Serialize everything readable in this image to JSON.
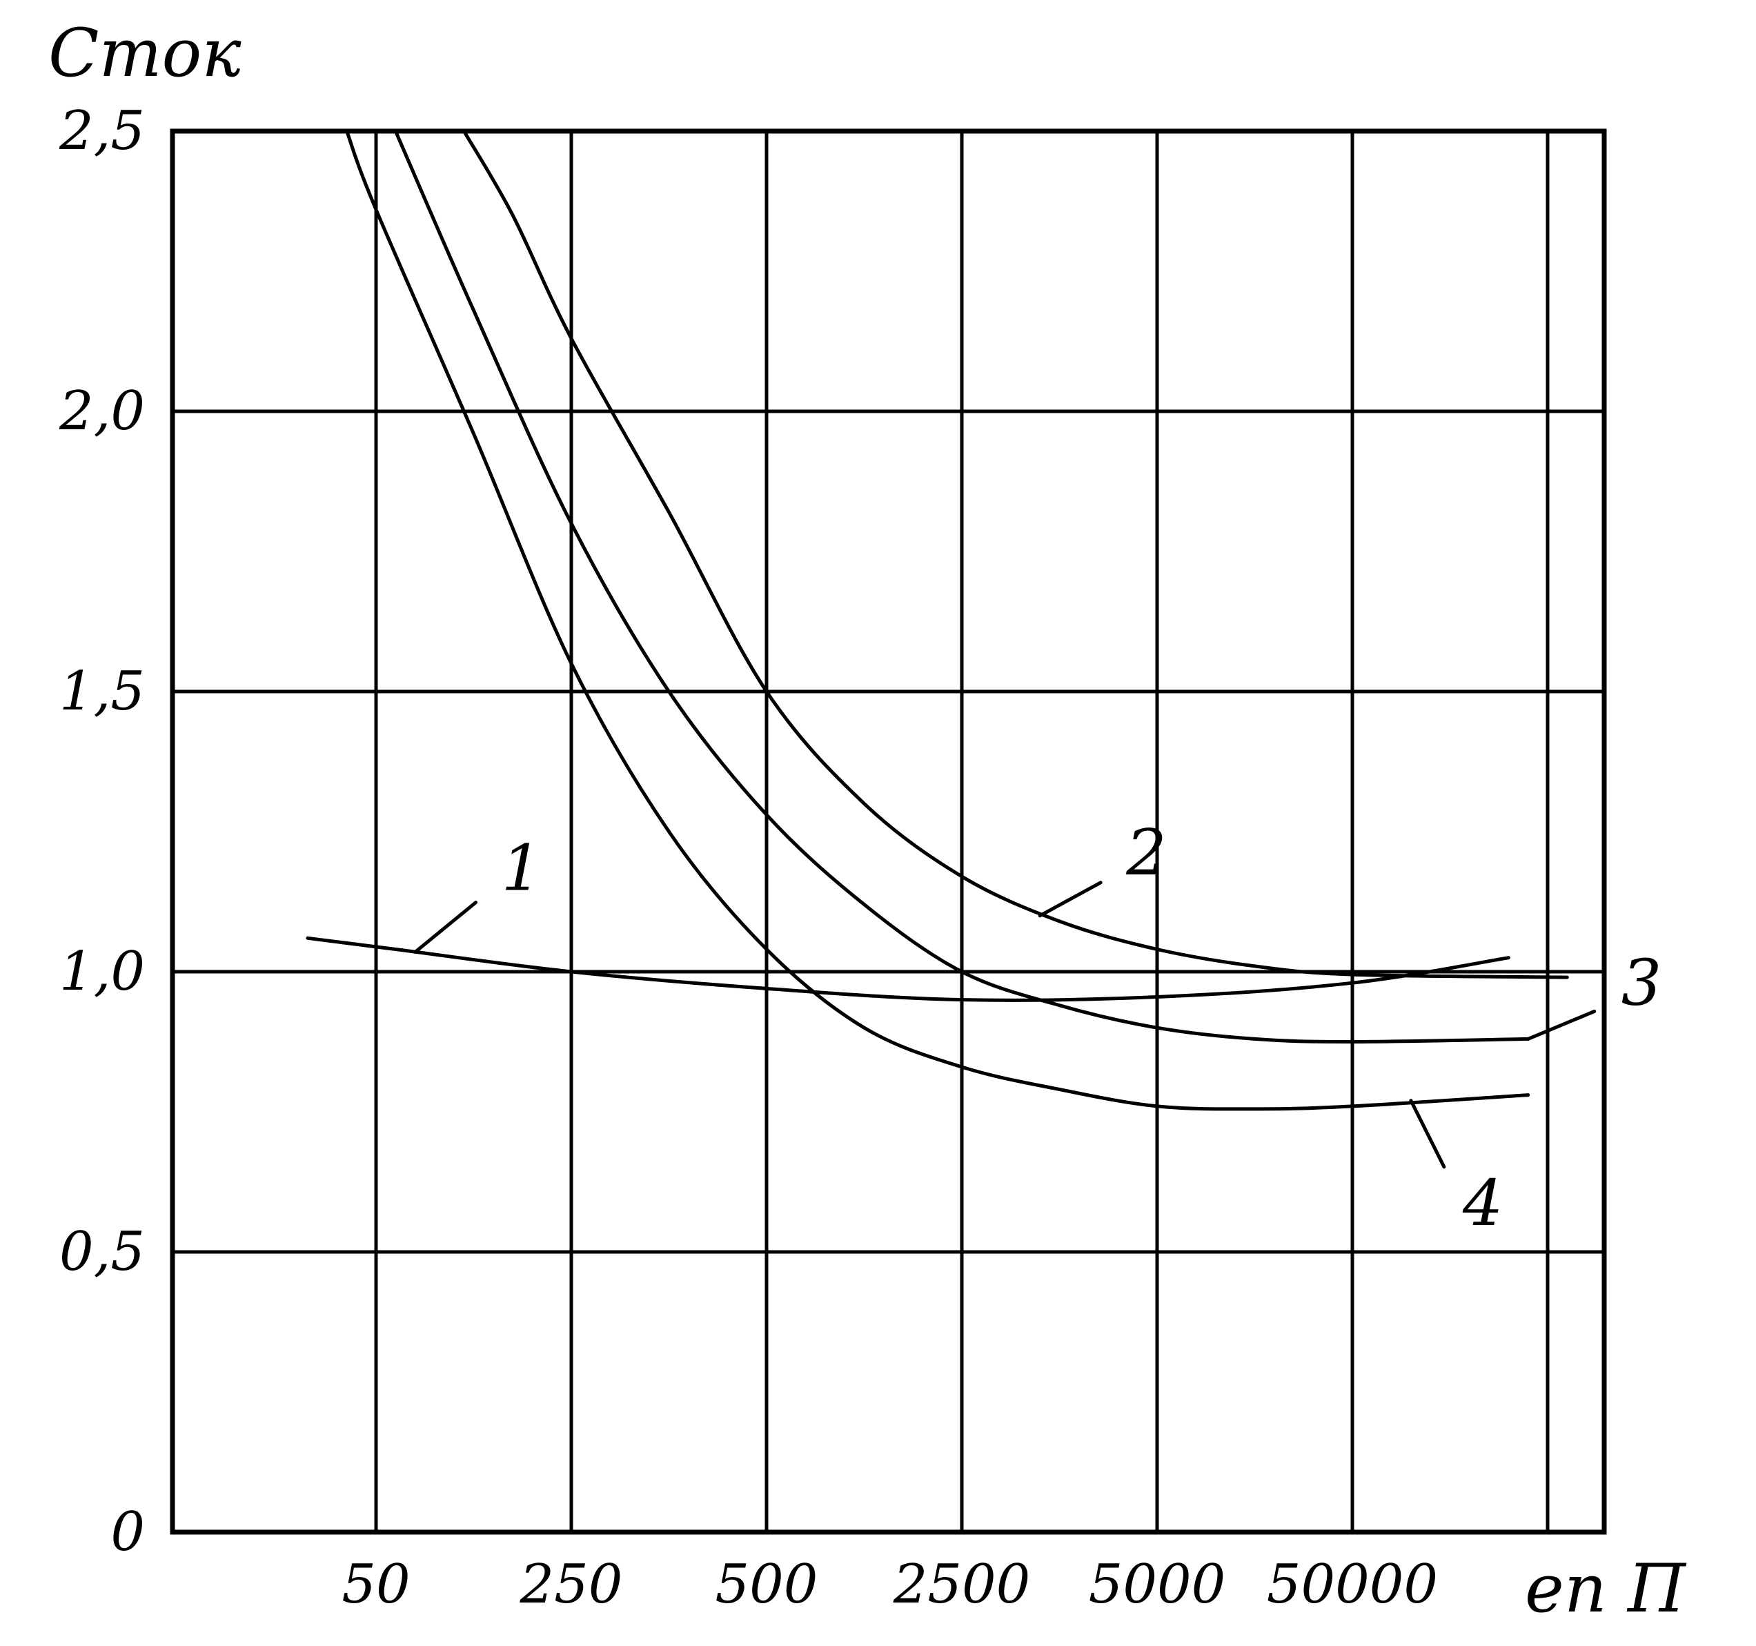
{
  "chart_data": {
    "type": "line",
    "ylabel": "Сток",
    "xlabel": "еn П",
    "x_categories": [
      "50",
      "250",
      "500",
      "2500",
      "5000",
      "50000"
    ],
    "y_ticks": [
      "0",
      "0,5",
      "1,0",
      "1,5",
      "2,0",
      "2,5"
    ],
    "y_tick_values": [
      0,
      0.5,
      1.0,
      1.5,
      2.0,
      2.5
    ],
    "ylim": [
      0,
      2.5
    ],
    "grid": true,
    "series": [
      {
        "name": "1",
        "points": [
          [
            -0.35,
            1.06
          ],
          [
            0.1,
            1.04
          ],
          [
            1.0,
            1.0
          ],
          [
            2.0,
            0.97
          ],
          [
            3.0,
            0.95
          ],
          [
            4.0,
            0.955
          ],
          [
            5.0,
            0.98
          ],
          [
            5.8,
            1.025
          ]
        ]
      },
      {
        "name": "2",
        "points": [
          [
            0.45,
            2.5
          ],
          [
            0.7,
            2.35
          ],
          [
            1.0,
            2.13
          ],
          [
            1.5,
            1.82
          ],
          [
            2.0,
            1.5
          ],
          [
            2.5,
            1.3
          ],
          [
            3.0,
            1.17
          ],
          [
            3.5,
            1.09
          ],
          [
            4.0,
            1.04
          ],
          [
            4.5,
            1.01
          ],
          [
            5.0,
            0.995
          ],
          [
            6.1,
            0.99
          ]
        ]
      },
      {
        "name": "3",
        "points": [
          [
            0.1,
            2.5
          ],
          [
            0.5,
            2.18
          ],
          [
            1.0,
            1.8
          ],
          [
            1.5,
            1.5
          ],
          [
            2.0,
            1.28
          ],
          [
            2.5,
            1.12
          ],
          [
            3.0,
            1.0
          ],
          [
            3.5,
            0.94
          ],
          [
            4.0,
            0.9
          ],
          [
            4.5,
            0.88
          ],
          [
            5.0,
            0.875
          ],
          [
            5.9,
            0.88
          ]
        ]
      },
      {
        "name": "4",
        "points": [
          [
            -0.15,
            2.5
          ],
          [
            0.0,
            2.36
          ],
          [
            0.5,
            1.96
          ],
          [
            1.0,
            1.55
          ],
          [
            1.5,
            1.25
          ],
          [
            2.0,
            1.04
          ],
          [
            2.5,
            0.9
          ],
          [
            3.0,
            0.83
          ],
          [
            3.5,
            0.79
          ],
          [
            4.0,
            0.76
          ],
          [
            4.5,
            0.755
          ],
          [
            5.0,
            0.76
          ],
          [
            5.9,
            0.78
          ]
        ]
      }
    ]
  }
}
